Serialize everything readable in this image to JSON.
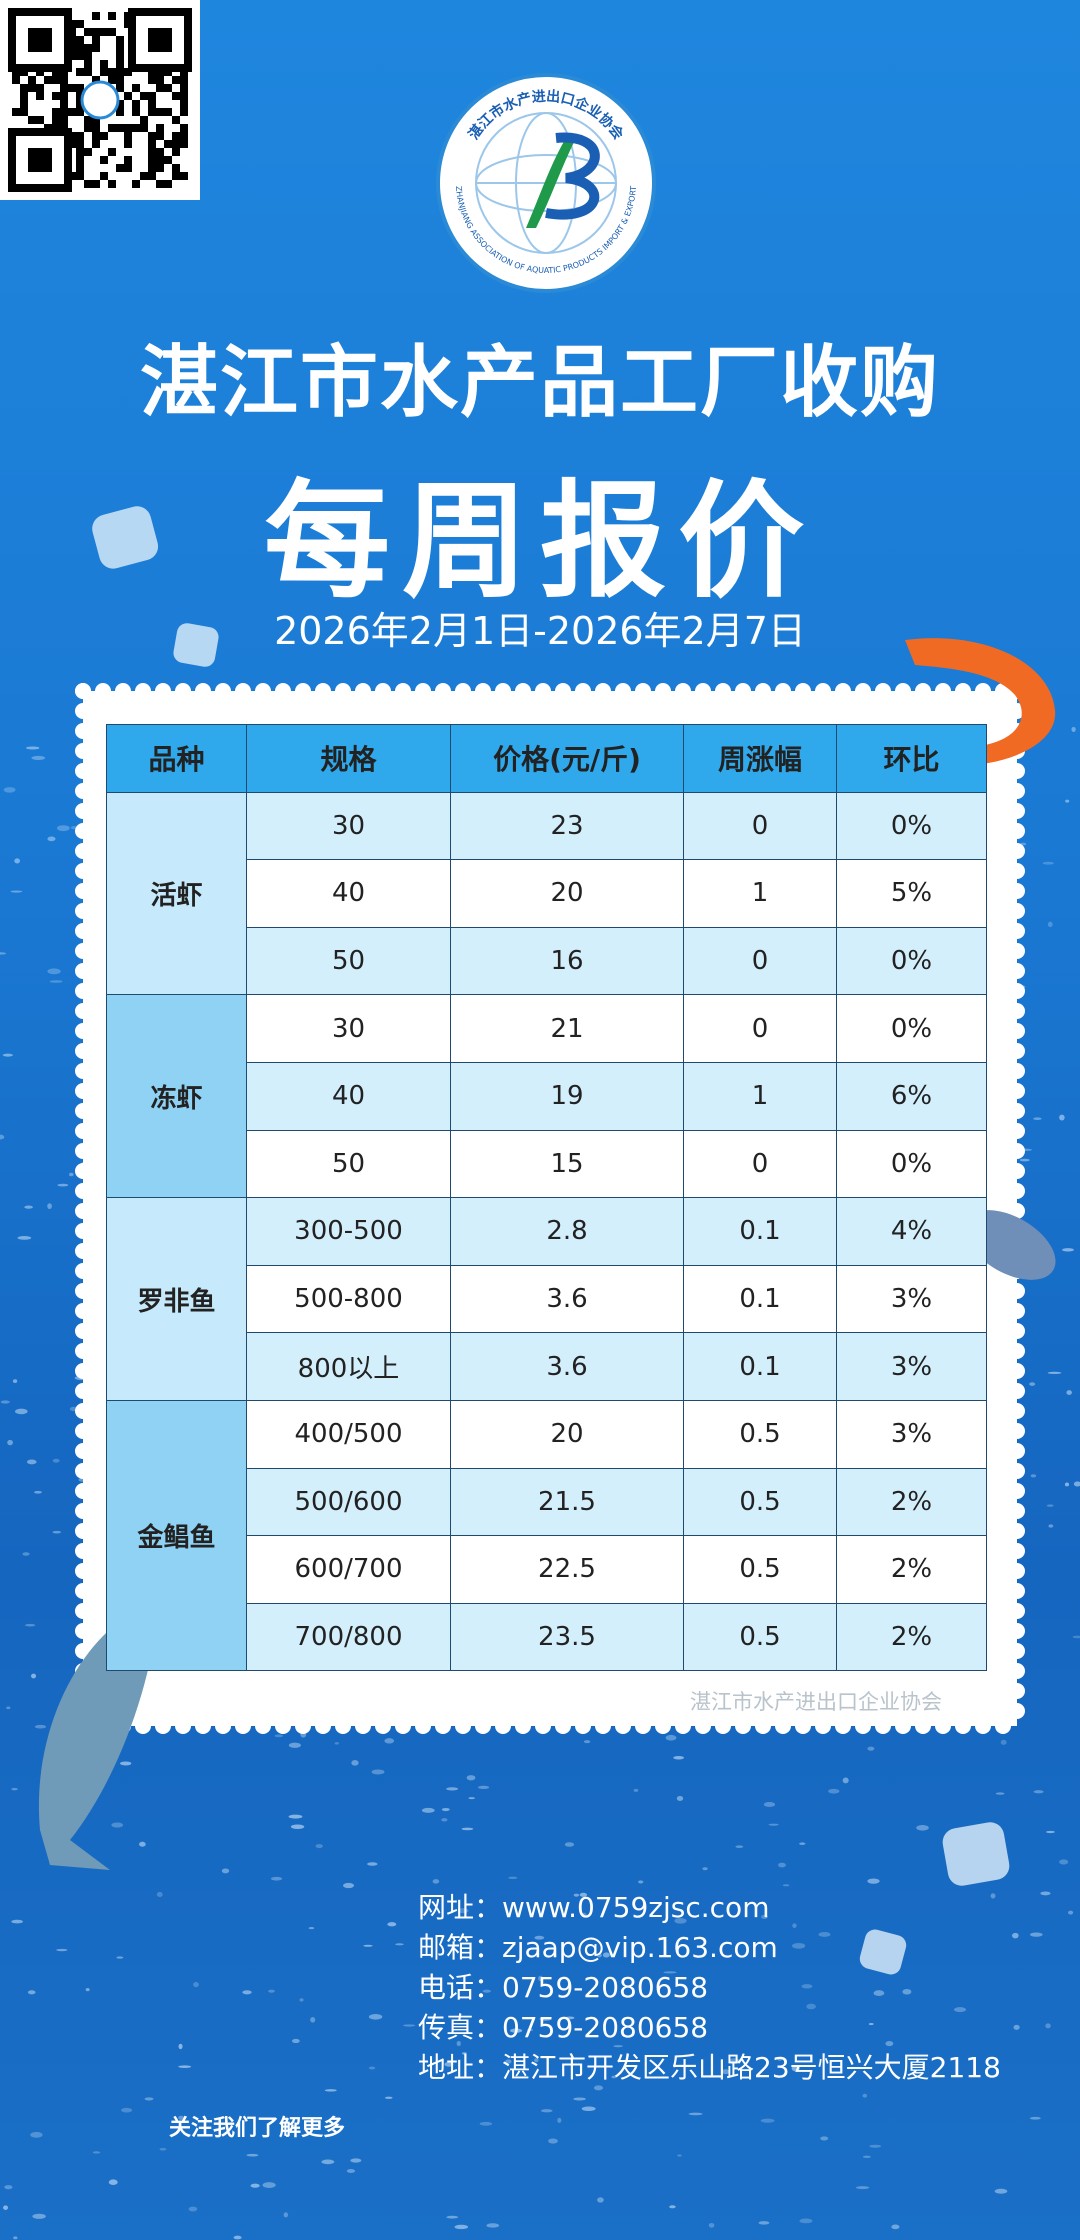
{
  "logo": {
    "name_cn": "湛江市水产进出口企业协会",
    "name_en": "ZHANJIANG ASSOCIATION OF AQUATIC PRODUCTS IMPORT & EXPORT"
  },
  "header": {
    "title": "湛江市水产品工厂收购",
    "subtitle": "每周报价",
    "date": "2026年2月1日-2026年2月7日"
  },
  "table": {
    "headers": [
      "品种",
      "规格",
      "价格(元/斤)",
      "周涨幅",
      "环比"
    ],
    "groups": [
      {
        "name": "活虾",
        "rows": [
          [
            "30",
            23,
            0,
            "0%"
          ],
          [
            "40",
            20,
            1,
            "5%"
          ],
          [
            "50",
            16,
            0,
            "0%"
          ]
        ]
      },
      {
        "name": "冻虾",
        "rows": [
          [
            "30",
            21,
            0,
            "0%"
          ],
          [
            "40",
            19,
            1,
            "6%"
          ],
          [
            "50",
            15,
            0,
            "0%"
          ]
        ]
      },
      {
        "name": "罗非鱼",
        "rows": [
          [
            "300-500",
            2.8,
            0.1,
            "4%"
          ],
          [
            "500-800",
            3.6,
            0.1,
            "3%"
          ],
          [
            "800以上",
            3.6,
            0.1,
            "3%"
          ]
        ]
      },
      {
        "name": "金鲳鱼",
        "rows": [
          [
            "400/500",
            20,
            0.5,
            "3%"
          ],
          [
            "500/600",
            21.5,
            0.5,
            "2%"
          ],
          [
            "600/700",
            22.5,
            0.5,
            "2%"
          ],
          [
            "700/800",
            23.5,
            0.5,
            "2%"
          ]
        ]
      }
    ],
    "watermark": "湛江市水产进出口企业协会"
  },
  "footer": {
    "qr_caption": "关注我们了解更多",
    "contacts": [
      {
        "label": "网址：",
        "value": "www.0759zjsc.com"
      },
      {
        "label": "邮箱：",
        "value": "zjaap@vip.163.com"
      },
      {
        "label": "电话：",
        "value": "0759-2080658"
      },
      {
        "label": "传真：",
        "value": "0759-2080658"
      },
      {
        "label": "地址：",
        "value": "湛江市开发区乐山路23号恒兴大厦2118"
      }
    ]
  }
}
